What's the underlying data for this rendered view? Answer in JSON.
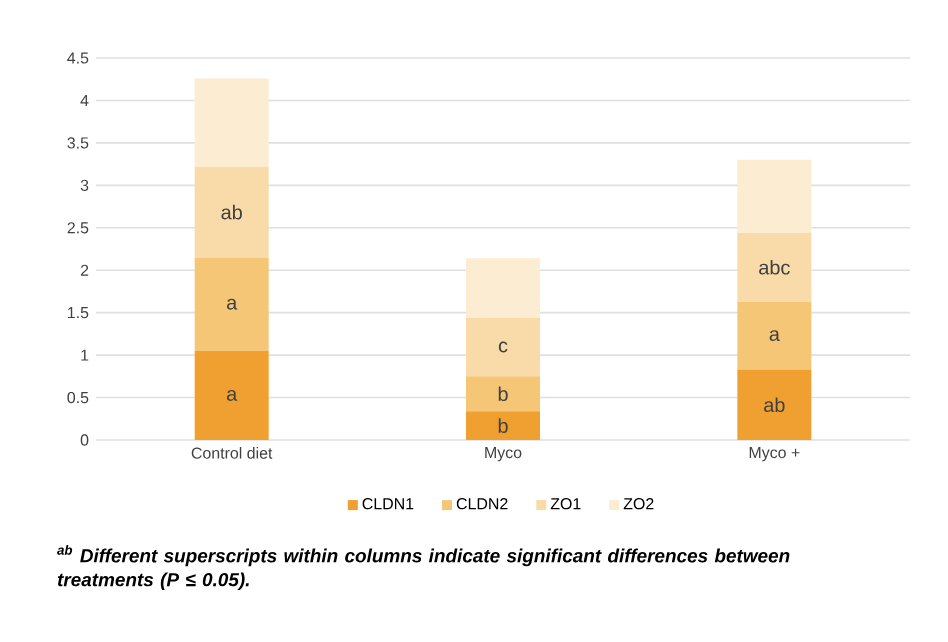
{
  "chart_data": {
    "type": "bar",
    "stacked": true,
    "categories": [
      "Control diet",
      "Myco",
      "Myco +"
    ],
    "series": [
      {
        "name": "CLDN1",
        "color": "#f0a030",
        "values": [
          1.05,
          0.34,
          0.83
        ],
        "value_labels": [
          "a",
          "b",
          "ab"
        ]
      },
      {
        "name": "CLDN2",
        "color": "#f5c676",
        "values": [
          1.1,
          0.41,
          0.8
        ],
        "value_labels": [
          "a",
          "b",
          "a"
        ]
      },
      {
        "name": "ZO1",
        "color": "#f8dba8",
        "values": [
          1.07,
          0.69,
          0.81
        ],
        "value_labels": [
          "ab",
          "c",
          "abc"
        ]
      },
      {
        "name": "ZO2",
        "color": "#fcecd2",
        "values": [
          1.04,
          0.7,
          0.86
        ]
      }
    ],
    "ylim": [
      0,
      4.5
    ],
    "yticks": [
      0,
      0.5,
      1,
      1.5,
      2,
      2.5,
      3,
      3.5,
      4,
      4.5
    ],
    "grid": "y",
    "legend": "bottom",
    "annotations": [
      "$^{ab}$ Different superscripts within columns indicate significant differences between treatments (P ≤ 0.05)."
    ]
  }
}
